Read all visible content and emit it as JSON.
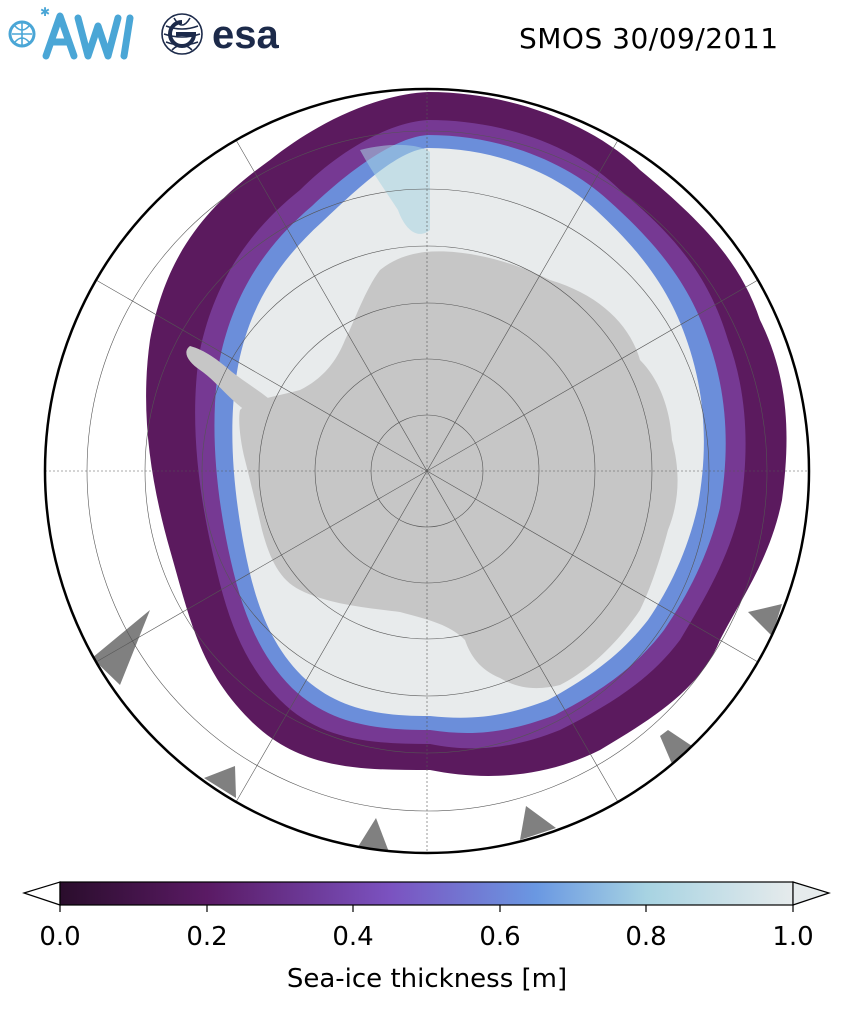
{
  "logos": {
    "awi": "AWI",
    "esa": "esa"
  },
  "title": "SMOS 30/09/2011",
  "map": {
    "projection": "south-polar-stereographic",
    "gridlines": true,
    "colors": {
      "land": "#c6c6c6",
      "thick_ice": "#e8ebec",
      "thin_ice": "#5b1a5e",
      "ocean": "#ffffff",
      "boundary": "#000000"
    }
  },
  "colorbar": {
    "label": "Sea-ice thickness [m]",
    "ticks": [
      "0.0",
      "0.2",
      "0.4",
      "0.6",
      "0.8",
      "1.0"
    ],
    "range": [
      0.0,
      1.0
    ],
    "extend": "both",
    "colors": [
      "#2a0d2c",
      "#5a1a64",
      "#7b52c0",
      "#6a98e2",
      "#a7d3e2",
      "#e6ebec"
    ]
  }
}
